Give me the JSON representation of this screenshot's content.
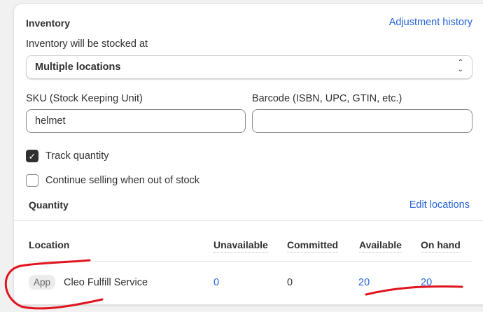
{
  "inventory": {
    "title": "Inventory",
    "adjustment_history": "Adjustment history",
    "stocked_at_label": "Inventory will be stocked at",
    "stocked_at_value": "Multiple locations",
    "sku_label": "SKU (Stock Keeping Unit)",
    "sku_value": "helmet",
    "barcode_label": "Barcode (ISBN, UPC, GTIN, etc.)",
    "barcode_value": "",
    "track_quantity": {
      "label": "Track quantity",
      "checked": true
    },
    "continue_selling": {
      "label": "Continue selling when out of stock",
      "checked": false
    }
  },
  "quantity": {
    "title": "Quantity",
    "edit_locations": "Edit locations",
    "columns": [
      "Location",
      "Unavailable",
      "Committed",
      "Available",
      "On hand"
    ],
    "rows": [
      {
        "badge": "App",
        "location": "Cleo Fulfill Service",
        "unavailable": "0",
        "committed": "0",
        "available": "20",
        "on_hand": "20"
      }
    ]
  },
  "colors": {
    "link": "#2463d6",
    "annotation": "#e0141e"
  }
}
